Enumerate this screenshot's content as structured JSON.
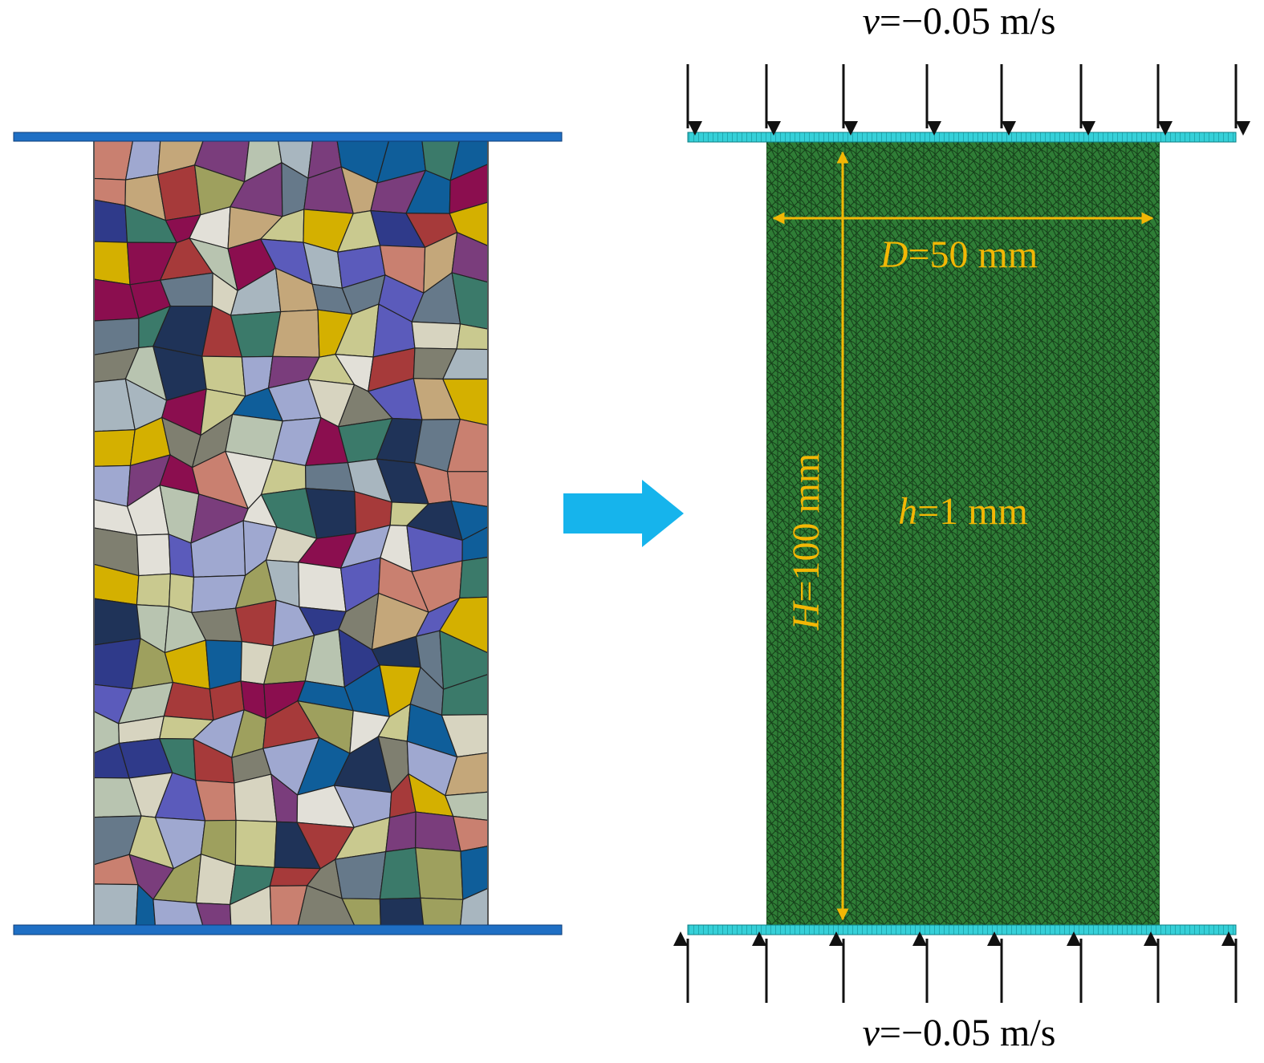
{
  "labels": {
    "top_load": {
      "symbol": "v",
      "text": "=−0.05 m/s"
    },
    "bottom_load": {
      "symbol": "v",
      "text": "=−0.05 m/s"
    },
    "diameter": {
      "symbol": "D",
      "text": "=50 mm"
    },
    "thickness": {
      "symbol": "h",
      "text": "=1 mm"
    },
    "height": {
      "symbol": "H",
      "text": "=100 mm"
    }
  }
}
